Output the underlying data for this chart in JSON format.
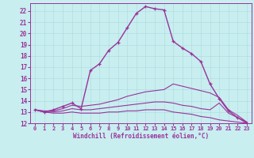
{
  "xlabel": "Windchill (Refroidissement éolien,°C)",
  "bg_color": "#c8eef0",
  "line_color": "#993399",
  "grid_color": "#b0dde0",
  "xlim": [
    -0.5,
    23.5
  ],
  "ylim": [
    12,
    22.7
  ],
  "xticks": [
    0,
    1,
    2,
    3,
    4,
    5,
    6,
    7,
    8,
    9,
    10,
    11,
    12,
    13,
    14,
    15,
    16,
    17,
    18,
    19,
    20,
    21,
    22,
    23
  ],
  "yticks": [
    12,
    13,
    14,
    15,
    16,
    17,
    18,
    19,
    20,
    21,
    22
  ],
  "series": [
    {
      "x": [
        0,
        1,
        2,
        3,
        4,
        5,
        6,
        7,
        8,
        9,
        10,
        11,
        12,
        13,
        14,
        15,
        16,
        17,
        18,
        19,
        20,
        21,
        22,
        23
      ],
      "y": [
        13.2,
        13.0,
        13.2,
        13.5,
        13.8,
        13.3,
        16.7,
        17.3,
        18.5,
        19.2,
        20.5,
        21.8,
        22.4,
        22.2,
        22.1,
        19.3,
        18.7,
        18.2,
        17.5,
        15.5,
        14.2,
        13.1,
        12.5,
        12.0
      ],
      "marker": true,
      "linestyle": "-",
      "linewidth": 1.0
    },
    {
      "x": [
        0,
        1,
        2,
        3,
        4,
        5,
        6,
        7,
        8,
        9,
        10,
        11,
        12,
        13,
        14,
        15,
        16,
        17,
        18,
        19,
        20,
        21,
        22,
        23
      ],
      "y": [
        13.2,
        13.1,
        13.1,
        13.3,
        13.6,
        13.5,
        13.6,
        13.7,
        13.9,
        14.1,
        14.4,
        14.6,
        14.8,
        14.9,
        15.0,
        15.5,
        15.3,
        15.1,
        14.9,
        14.7,
        14.3,
        13.2,
        12.7,
        12.1
      ],
      "marker": false,
      "linestyle": "-",
      "linewidth": 0.8
    },
    {
      "x": [
        0,
        1,
        2,
        3,
        4,
        5,
        6,
        7,
        8,
        9,
        10,
        11,
        12,
        13,
        14,
        15,
        16,
        17,
        18,
        19,
        20,
        21,
        22,
        23
      ],
      "y": [
        13.2,
        13.0,
        13.0,
        13.1,
        13.3,
        13.2,
        13.2,
        13.3,
        13.4,
        13.5,
        13.6,
        13.7,
        13.8,
        13.9,
        13.9,
        13.8,
        13.6,
        13.5,
        13.3,
        13.2,
        13.8,
        12.9,
        12.5,
        12.1
      ],
      "marker": false,
      "linestyle": "-",
      "linewidth": 0.8
    },
    {
      "x": [
        0,
        1,
        2,
        3,
        4,
        5,
        6,
        7,
        8,
        9,
        10,
        11,
        12,
        13,
        14,
        15,
        16,
        17,
        18,
        19,
        20,
        21,
        22,
        23
      ],
      "y": [
        13.2,
        13.0,
        12.9,
        12.9,
        13.0,
        12.9,
        12.9,
        12.9,
        13.0,
        13.0,
        13.1,
        13.1,
        13.2,
        13.2,
        13.2,
        13.0,
        12.9,
        12.8,
        12.6,
        12.5,
        12.3,
        12.2,
        12.1,
        12.0
      ],
      "marker": false,
      "linestyle": "-",
      "linewidth": 0.8
    }
  ]
}
